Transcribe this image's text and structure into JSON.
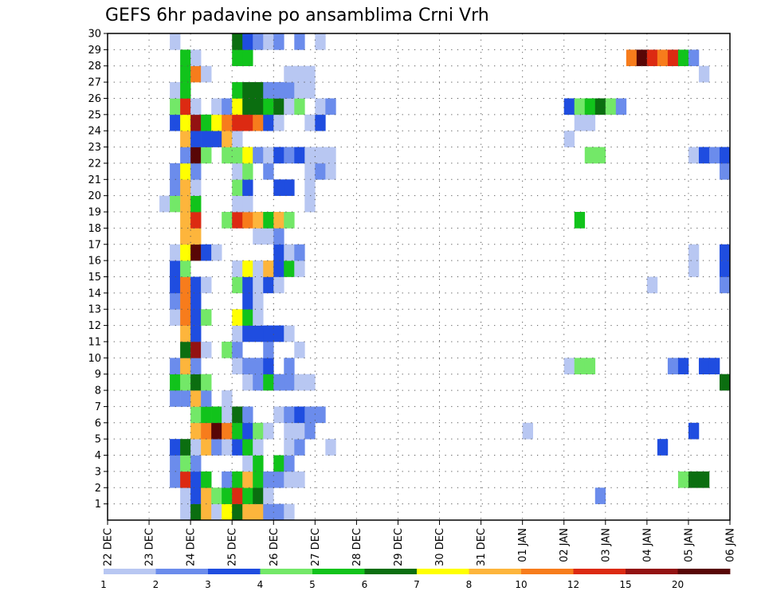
{
  "chart_data": {
    "type": "heatmap",
    "title": "GEFS 6hr padavine po ansamblima Crni Vrh",
    "xlabel": "",
    "ylabel": "",
    "x_tick_labels": [
      "22 DEC",
      "23 DEC",
      "24 DEC",
      "25 DEC",
      "26 DEC",
      "27 DEC",
      "28 DEC",
      "29 DEC",
      "30 DEC",
      "31 DEC",
      "01 JAN",
      "02 JAN",
      "03 JAN",
      "04 JAN",
      "05 JAN",
      "06 JAN"
    ],
    "x_range_steps": [
      0,
      60
    ],
    "steps_per_day": 4,
    "y_tick_labels": [
      "1",
      "2",
      "3",
      "4",
      "5",
      "6",
      "7",
      "8",
      "9",
      "10",
      "11",
      "12",
      "13",
      "14",
      "15",
      "16",
      "17",
      "18",
      "19",
      "20",
      "21",
      "22",
      "23",
      "24",
      "25",
      "26",
      "27",
      "28",
      "29",
      "30"
    ],
    "ylim": [
      0,
      30
    ],
    "grid": true,
    "colorbar": {
      "labels": [
        "1",
        "2",
        "3",
        "4",
        "5",
        "6",
        "7",
        "8",
        "10",
        "12",
        "15",
        "20"
      ],
      "colors": [
        "#b8c7f2",
        "#6b8cec",
        "#1f4de0",
        "#73e868",
        "#11c31b",
        "#0b6e10",
        "#ffff00",
        "#fdb53c",
        "#f77c1c",
        "#dc2a12",
        "#931212",
        "#580606"
      ]
    },
    "cells_note": "each cell: [member, step index from 22 DEC 00z, colour class 0-11]",
    "cells": [
      [
        1,
        7,
        0
      ],
      [
        1,
        8,
        5
      ],
      [
        1,
        9,
        7
      ],
      [
        1,
        10,
        0
      ],
      [
        1,
        11,
        6
      ],
      [
        1,
        12,
        5
      ],
      [
        1,
        13,
        7
      ],
      [
        1,
        14,
        7
      ],
      [
        1,
        15,
        1
      ],
      [
        1,
        16,
        1
      ],
      [
        1,
        17,
        0
      ],
      [
        2,
        7,
        0
      ],
      [
        2,
        8,
        2
      ],
      [
        2,
        9,
        7
      ],
      [
        2,
        10,
        3
      ],
      [
        2,
        11,
        4
      ],
      [
        2,
        12,
        9
      ],
      [
        2,
        13,
        4
      ],
      [
        2,
        14,
        5
      ],
      [
        2,
        15,
        0
      ],
      [
        2,
        47,
        1
      ],
      [
        3,
        6,
        1
      ],
      [
        3,
        7,
        9
      ],
      [
        3,
        8,
        2
      ],
      [
        3,
        9,
        4
      ],
      [
        3,
        11,
        1
      ],
      [
        3,
        12,
        4
      ],
      [
        3,
        13,
        7
      ],
      [
        3,
        14,
        4
      ],
      [
        3,
        15,
        1
      ],
      [
        3,
        16,
        1
      ],
      [
        3,
        17,
        0
      ],
      [
        3,
        18,
        0
      ],
      [
        3,
        55,
        3
      ],
      [
        3,
        56,
        5
      ],
      [
        3,
        57,
        5
      ],
      [
        4,
        6,
        1
      ],
      [
        4,
        7,
        3
      ],
      [
        4,
        8,
        1
      ],
      [
        4,
        13,
        0
      ],
      [
        4,
        14,
        4
      ],
      [
        4,
        16,
        4
      ],
      [
        4,
        17,
        1
      ],
      [
        5,
        6,
        2
      ],
      [
        5,
        7,
        5
      ],
      [
        5,
        8,
        0
      ],
      [
        5,
        9,
        7
      ],
      [
        5,
        10,
        1
      ],
      [
        5,
        11,
        0
      ],
      [
        5,
        12,
        2
      ],
      [
        5,
        13,
        4
      ],
      [
        5,
        14,
        0
      ],
      [
        5,
        17,
        0
      ],
      [
        5,
        18,
        1
      ],
      [
        5,
        21,
        0
      ],
      [
        5,
        53,
        2
      ],
      [
        6,
        8,
        7
      ],
      [
        6,
        9,
        8
      ],
      [
        6,
        10,
        11
      ],
      [
        6,
        11,
        8
      ],
      [
        6,
        12,
        4
      ],
      [
        6,
        13,
        2
      ],
      [
        6,
        14,
        3
      ],
      [
        6,
        15,
        0
      ],
      [
        6,
        17,
        0
      ],
      [
        6,
        18,
        0
      ],
      [
        6,
        19,
        1
      ],
      [
        6,
        40,
        0
      ],
      [
        6,
        56,
        2
      ],
      [
        7,
        8,
        3
      ],
      [
        7,
        9,
        4
      ],
      [
        7,
        10,
        4
      ],
      [
        7,
        11,
        0
      ],
      [
        7,
        12,
        5
      ],
      [
        7,
        13,
        1
      ],
      [
        7,
        16,
        0
      ],
      [
        7,
        17,
        1
      ],
      [
        7,
        18,
        2
      ],
      [
        7,
        19,
        1
      ],
      [
        7,
        20,
        1
      ],
      [
        8,
        6,
        1
      ],
      [
        8,
        7,
        1
      ],
      [
        8,
        8,
        7
      ],
      [
        8,
        9,
        1
      ],
      [
        8,
        11,
        0
      ],
      [
        9,
        6,
        4
      ],
      [
        9,
        7,
        3
      ],
      [
        9,
        8,
        5
      ],
      [
        9,
        9,
        3
      ],
      [
        9,
        13,
        0
      ],
      [
        9,
        14,
        1
      ],
      [
        9,
        15,
        4
      ],
      [
        9,
        16,
        1
      ],
      [
        9,
        17,
        1
      ],
      [
        9,
        18,
        0
      ],
      [
        9,
        19,
        0
      ],
      [
        9,
        59,
        5
      ],
      [
        10,
        6,
        1
      ],
      [
        10,
        7,
        7
      ],
      [
        10,
        8,
        1
      ],
      [
        10,
        12,
        0
      ],
      [
        10,
        13,
        1
      ],
      [
        10,
        14,
        1
      ],
      [
        10,
        15,
        2
      ],
      [
        10,
        17,
        1
      ],
      [
        10,
        44,
        0
      ],
      [
        10,
        45,
        3
      ],
      [
        10,
        46,
        3
      ],
      [
        10,
        54,
        1
      ],
      [
        10,
        55,
        2
      ],
      [
        10,
        57,
        2
      ],
      [
        10,
        58,
        2
      ],
      [
        11,
        7,
        5
      ],
      [
        11,
        8,
        10
      ],
      [
        11,
        9,
        0
      ],
      [
        11,
        11,
        3
      ],
      [
        11,
        12,
        1
      ],
      [
        11,
        15,
        1
      ],
      [
        11,
        18,
        0
      ],
      [
        12,
        7,
        7
      ],
      [
        12,
        8,
        2
      ],
      [
        12,
        12,
        0
      ],
      [
        12,
        13,
        2
      ],
      [
        12,
        14,
        2
      ],
      [
        12,
        15,
        2
      ],
      [
        12,
        16,
        2
      ],
      [
        12,
        17,
        0
      ],
      [
        13,
        6,
        0
      ],
      [
        13,
        7,
        8
      ],
      [
        13,
        8,
        2
      ],
      [
        13,
        9,
        3
      ],
      [
        13,
        12,
        6
      ],
      [
        13,
        13,
        4
      ],
      [
        13,
        14,
        0
      ],
      [
        14,
        6,
        1
      ],
      [
        14,
        7,
        8
      ],
      [
        14,
        8,
        2
      ],
      [
        14,
        13,
        2
      ],
      [
        14,
        14,
        0
      ],
      [
        15,
        6,
        2
      ],
      [
        15,
        7,
        8
      ],
      [
        15,
        8,
        2
      ],
      [
        15,
        9,
        0
      ],
      [
        15,
        12,
        3
      ],
      [
        15,
        13,
        2
      ],
      [
        15,
        14,
        0
      ],
      [
        15,
        15,
        2
      ],
      [
        15,
        16,
        0
      ],
      [
        15,
        52,
        0
      ],
      [
        15,
        59,
        1
      ],
      [
        16,
        6,
        2
      ],
      [
        16,
        7,
        3
      ],
      [
        16,
        12,
        0
      ],
      [
        16,
        13,
        6
      ],
      [
        16,
        14,
        0
      ],
      [
        16,
        15,
        7
      ],
      [
        16,
        16,
        2
      ],
      [
        16,
        17,
        4
      ],
      [
        16,
        18,
        0
      ],
      [
        16,
        56,
        0
      ],
      [
        16,
        59,
        2
      ],
      [
        17,
        6,
        0
      ],
      [
        17,
        7,
        6
      ],
      [
        17,
        8,
        11
      ],
      [
        17,
        9,
        2
      ],
      [
        17,
        10,
        0
      ],
      [
        17,
        16,
        2
      ],
      [
        17,
        17,
        0
      ],
      [
        17,
        18,
        1
      ],
      [
        17,
        56,
        0
      ],
      [
        17,
        59,
        2
      ],
      [
        18,
        7,
        7
      ],
      [
        18,
        8,
        7
      ],
      [
        18,
        14,
        0
      ],
      [
        18,
        15,
        0
      ],
      [
        18,
        16,
        1
      ],
      [
        19,
        7,
        7
      ],
      [
        19,
        8,
        9
      ],
      [
        19,
        11,
        3
      ],
      [
        19,
        12,
        9
      ],
      [
        19,
        13,
        8
      ],
      [
        19,
        14,
        7
      ],
      [
        19,
        15,
        4
      ],
      [
        19,
        16,
        7
      ],
      [
        19,
        17,
        3
      ],
      [
        19,
        45,
        4
      ],
      [
        20,
        5,
        0
      ],
      [
        20,
        6,
        3
      ],
      [
        20,
        7,
        7
      ],
      [
        20,
        8,
        4
      ],
      [
        20,
        12,
        0
      ],
      [
        20,
        13,
        0
      ],
      [
        20,
        19,
        0
      ],
      [
        21,
        6,
        1
      ],
      [
        21,
        7,
        7
      ],
      [
        21,
        8,
        0
      ],
      [
        21,
        12,
        3
      ],
      [
        21,
        13,
        2
      ],
      [
        21,
        16,
        2
      ],
      [
        21,
        17,
        2
      ],
      [
        21,
        19,
        0
      ],
      [
        22,
        6,
        1
      ],
      [
        22,
        7,
        6
      ],
      [
        22,
        8,
        1
      ],
      [
        22,
        12,
        0
      ],
      [
        22,
        13,
        3
      ],
      [
        22,
        15,
        1
      ],
      [
        22,
        19,
        0
      ],
      [
        22,
        20,
        1
      ],
      [
        22,
        21,
        0
      ],
      [
        22,
        59,
        1
      ],
      [
        23,
        7,
        1
      ],
      [
        23,
        8,
        11
      ],
      [
        23,
        9,
        3
      ],
      [
        23,
        11,
        3
      ],
      [
        23,
        12,
        3
      ],
      [
        23,
        13,
        6
      ],
      [
        23,
        14,
        1
      ],
      [
        23,
        15,
        0
      ],
      [
        23,
        16,
        2
      ],
      [
        23,
        17,
        1
      ],
      [
        23,
        18,
        2
      ],
      [
        23,
        19,
        0
      ],
      [
        23,
        20,
        0
      ],
      [
        23,
        21,
        0
      ],
      [
        23,
        46,
        3
      ],
      [
        23,
        47,
        3
      ],
      [
        23,
        56,
        0
      ],
      [
        23,
        57,
        2
      ],
      [
        23,
        58,
        1
      ],
      [
        23,
        59,
        2
      ],
      [
        24,
        7,
        7
      ],
      [
        24,
        8,
        2
      ],
      [
        24,
        9,
        2
      ],
      [
        24,
        10,
        2
      ],
      [
        24,
        11,
        7
      ],
      [
        24,
        12,
        0
      ],
      [
        24,
        44,
        0
      ],
      [
        25,
        6,
        2
      ],
      [
        25,
        7,
        6
      ],
      [
        25,
        8,
        10
      ],
      [
        25,
        9,
        4
      ],
      [
        25,
        10,
        6
      ],
      [
        25,
        11,
        8
      ],
      [
        25,
        12,
        9
      ],
      [
        25,
        13,
        9
      ],
      [
        25,
        14,
        8
      ],
      [
        25,
        15,
        2
      ],
      [
        25,
        16,
        0
      ],
      [
        25,
        19,
        0
      ],
      [
        25,
        20,
        2
      ],
      [
        25,
        45,
        0
      ],
      [
        25,
        46,
        0
      ],
      [
        26,
        6,
        3
      ],
      [
        26,
        7,
        9
      ],
      [
        26,
        8,
        0
      ],
      [
        26,
        10,
        0
      ],
      [
        26,
        11,
        1
      ],
      [
        26,
        12,
        6
      ],
      [
        26,
        13,
        5
      ],
      [
        26,
        14,
        5
      ],
      [
        26,
        15,
        4
      ],
      [
        26,
        16,
        5
      ],
      [
        26,
        17,
        0
      ],
      [
        26,
        18,
        3
      ],
      [
        26,
        20,
        0
      ],
      [
        26,
        21,
        1
      ],
      [
        26,
        44,
        2
      ],
      [
        26,
        45,
        3
      ],
      [
        26,
        46,
        4
      ],
      [
        26,
        47,
        5
      ],
      [
        26,
        48,
        3
      ],
      [
        26,
        49,
        1
      ],
      [
        27,
        6,
        0
      ],
      [
        27,
        7,
        4
      ],
      [
        27,
        12,
        4
      ],
      [
        27,
        13,
        5
      ],
      [
        27,
        14,
        5
      ],
      [
        27,
        15,
        1
      ],
      [
        27,
        16,
        1
      ],
      [
        27,
        17,
        1
      ],
      [
        27,
        18,
        0
      ],
      [
        27,
        19,
        0
      ],
      [
        28,
        7,
        4
      ],
      [
        28,
        8,
        8
      ],
      [
        28,
        9,
        0
      ],
      [
        28,
        17,
        0
      ],
      [
        28,
        18,
        0
      ],
      [
        28,
        19,
        0
      ],
      [
        28,
        57,
        0
      ],
      [
        29,
        7,
        4
      ],
      [
        29,
        8,
        0
      ],
      [
        29,
        12,
        4
      ],
      [
        29,
        13,
        4
      ],
      [
        29,
        50,
        8
      ],
      [
        29,
        51,
        11
      ],
      [
        29,
        52,
        9
      ],
      [
        29,
        53,
        8
      ],
      [
        29,
        54,
        9
      ],
      [
        29,
        55,
        4
      ],
      [
        29,
        56,
        1
      ],
      [
        30,
        6,
        0
      ],
      [
        30,
        12,
        5
      ],
      [
        30,
        13,
        2
      ],
      [
        30,
        14,
        1
      ],
      [
        30,
        15,
        0
      ],
      [
        30,
        16,
        1
      ],
      [
        30,
        18,
        1
      ],
      [
        30,
        20,
        0
      ]
    ]
  }
}
